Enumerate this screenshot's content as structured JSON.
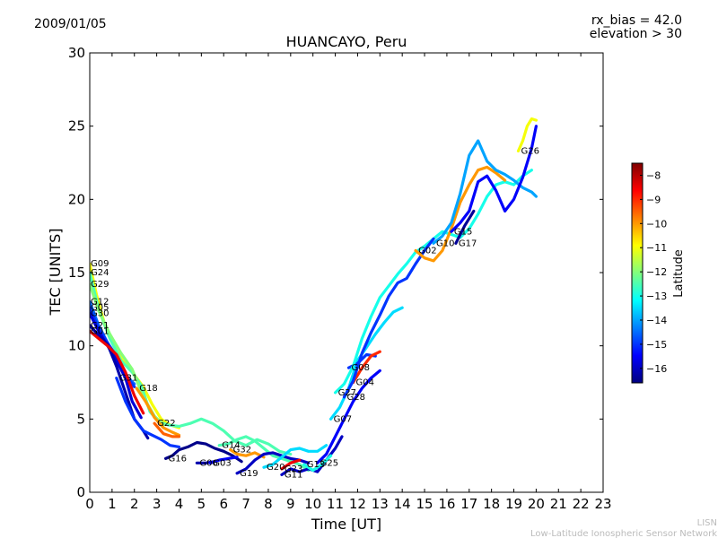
{
  "header": {
    "date": "2009/01/05",
    "rx_bias": "rx_bias = 42.0",
    "elevation": "elevation > 30"
  },
  "footer": {
    "line1": "LISN",
    "line2": "Low-Latitude Ionospheric Sensor Network"
  },
  "chart_data": {
    "type": "scatter",
    "title": "HUANCAYO, Peru",
    "xlabel": "Time [UT]",
    "ylabel": "TEC [UNITS]",
    "xlim": [
      0,
      23
    ],
    "ylim": [
      0,
      30
    ],
    "xticks": [
      0,
      1,
      2,
      3,
      4,
      5,
      6,
      7,
      8,
      9,
      10,
      11,
      12,
      13,
      14,
      15,
      16,
      17,
      18,
      19,
      20,
      21,
      22,
      23
    ],
    "yticks": [
      0,
      5,
      10,
      15,
      20,
      25,
      30
    ],
    "colorbar": {
      "label": "Latitude",
      "min": -16.6,
      "max": -7.5,
      "ticks": [
        -8,
        -9,
        -10,
        -11,
        -12,
        -13,
        -14,
        -15,
        -16
      ],
      "colormap": [
        "#00007f",
        "#0000ff",
        "#007fff",
        "#00ffff",
        "#7fff7f",
        "#ffff00",
        "#ff7f00",
        "#ff0000",
        "#7f0000"
      ]
    },
    "series": [
      {
        "name": "G09",
        "lat": -11.0,
        "points": [
          [
            0,
            15.6
          ],
          [
            0.3,
            13.5
          ],
          [
            0.7,
            11.3
          ],
          [
            1.2,
            9.6
          ],
          [
            1.6,
            8.9
          ],
          [
            2.0,
            8.0
          ],
          [
            2.4,
            7.2
          ],
          [
            2.8,
            6.0
          ],
          [
            3.2,
            5.0
          ],
          [
            3.6,
            4.6
          ],
          [
            4.0,
            4.4
          ]
        ]
      },
      {
        "name": "G24",
        "lat": -12.5,
        "points": [
          [
            0,
            15.0
          ],
          [
            0.4,
            12.5
          ],
          [
            0.9,
            10.5
          ],
          [
            1.4,
            9.0
          ],
          [
            1.9,
            8.2
          ],
          [
            2.3,
            7.3
          ],
          [
            2.7,
            5.5
          ],
          [
            3.1,
            4.8
          ],
          [
            3.5,
            4.6
          ],
          [
            4.0,
            4.5
          ],
          [
            4.5,
            4.7
          ],
          [
            5.0,
            5.0
          ],
          [
            5.5,
            4.7
          ],
          [
            6.0,
            4.2
          ],
          [
            6.5,
            3.5
          ],
          [
            7.0,
            3.2
          ],
          [
            7.5,
            3.6
          ],
          [
            8.0,
            3.3
          ],
          [
            8.5,
            2.8
          ],
          [
            9.0,
            2.6
          ]
        ]
      },
      {
        "name": "G29",
        "lat": -12.0,
        "points": [
          [
            0,
            14.2
          ],
          [
            0.4,
            12.4
          ],
          [
            0.9,
            10.8
          ],
          [
            1.4,
            9.5
          ],
          [
            1.9,
            8.4
          ],
          [
            2.4,
            6.5
          ],
          [
            2.9,
            5.2
          ],
          [
            3.3,
            4.6
          ]
        ]
      },
      {
        "name": "G12",
        "lat": -14.5,
        "points": [
          [
            0,
            13.0
          ],
          [
            0.4,
            11.4
          ],
          [
            0.8,
            10.2
          ],
          [
            1.2,
            9.0
          ],
          [
            1.6,
            8.0
          ],
          [
            2.0,
            7.4
          ]
        ]
      },
      {
        "name": "G05",
        "lat": -15.0,
        "points": [
          [
            0,
            12.6
          ],
          [
            0.4,
            11.2
          ],
          [
            0.8,
            10.2
          ],
          [
            1.2,
            9.3
          ],
          [
            1.6,
            8.0
          ],
          [
            2.0,
            7.2
          ]
        ]
      },
      {
        "name": "G30",
        "lat": -15.8,
        "points": [
          [
            0,
            12.2
          ],
          [
            0.4,
            11.0
          ],
          [
            0.8,
            10.0
          ],
          [
            1.2,
            9.0
          ],
          [
            1.6,
            7.8
          ],
          [
            1.9,
            6.2
          ],
          [
            2.3,
            5.1
          ]
        ]
      },
      {
        "name": "G21",
        "lat": -16.2,
        "points": [
          [
            0,
            11.4
          ],
          [
            0.4,
            10.7
          ],
          [
            0.8,
            10.1
          ],
          [
            1.2,
            8.6
          ],
          [
            1.6,
            6.8
          ],
          [
            2.0,
            5.0
          ],
          [
            2.4,
            4.2
          ],
          [
            2.6,
            3.7
          ]
        ]
      },
      {
        "name": "G01",
        "lat": -8.5,
        "points": [
          [
            0,
            11.0
          ],
          [
            0.4,
            10.5
          ],
          [
            0.8,
            10.0
          ],
          [
            1.2,
            9.4
          ],
          [
            1.6,
            8.2
          ],
          [
            2.0,
            6.6
          ],
          [
            2.4,
            5.4
          ]
        ]
      },
      {
        "name": "G31",
        "lat": -15.0,
        "points": [
          [
            1.2,
            7.8
          ],
          [
            1.6,
            6.2
          ],
          [
            2.0,
            5.0
          ],
          [
            2.4,
            4.2
          ],
          [
            2.8,
            3.9
          ],
          [
            3.2,
            3.6
          ],
          [
            3.6,
            3.2
          ],
          [
            4.0,
            3.1
          ]
        ]
      },
      {
        "name": "G18",
        "lat": -10.0,
        "points": [
          [
            2.1,
            7.1
          ],
          [
            2.5,
            6.2
          ],
          [
            2.9,
            5.1
          ],
          [
            3.3,
            4.4
          ],
          [
            3.7,
            4.1
          ],
          [
            4.0,
            3.9
          ]
        ]
      },
      {
        "name": "G22",
        "lat": -9.5,
        "points": [
          [
            2.9,
            4.7
          ],
          [
            3.3,
            4.0
          ],
          [
            3.7,
            3.8
          ],
          [
            4.0,
            3.8
          ]
        ]
      },
      {
        "name": "G16",
        "lat": -16.5,
        "points": [
          [
            3.4,
            2.3
          ],
          [
            3.7,
            2.5
          ],
          [
            4.0,
            2.9
          ],
          [
            4.4,
            3.1
          ],
          [
            4.8,
            3.4
          ],
          [
            5.2,
            3.3
          ],
          [
            5.6,
            3.0
          ],
          [
            6.0,
            2.8
          ],
          [
            6.4,
            2.5
          ],
          [
            6.8,
            2.1
          ]
        ]
      },
      {
        "name": "G06",
        "lat": -16.2,
        "points": [
          [
            4.8,
            2.0
          ],
          [
            5.2,
            2.0
          ],
          [
            5.6,
            2.1
          ]
        ]
      },
      {
        "name": "G03",
        "lat": -15.5,
        "points": [
          [
            5.4,
            2.0
          ],
          [
            5.8,
            2.2
          ],
          [
            6.2,
            2.3
          ],
          [
            6.6,
            2.4
          ]
        ]
      },
      {
        "name": "G14",
        "lat": -12.5,
        "points": [
          [
            5.8,
            3.2
          ],
          [
            6.2,
            3.3
          ],
          [
            6.6,
            3.6
          ],
          [
            7.0,
            3.8
          ],
          [
            7.4,
            3.5
          ],
          [
            7.8,
            3.0
          ],
          [
            8.2,
            2.5
          ],
          [
            8.6,
            2.3
          ],
          [
            9.0,
            2.1
          ],
          [
            9.4,
            1.9
          ],
          [
            9.8,
            1.5
          ]
        ]
      },
      {
        "name": "G32",
        "lat": -10.0,
        "points": [
          [
            6.3,
            2.9
          ],
          [
            6.6,
            2.6
          ],
          [
            7.0,
            2.5
          ],
          [
            7.4,
            2.7
          ],
          [
            7.8,
            2.4
          ]
        ]
      },
      {
        "name": "G19",
        "lat": -16.0,
        "points": [
          [
            6.6,
            1.3
          ],
          [
            7.0,
            1.6
          ],
          [
            7.4,
            2.2
          ],
          [
            7.8,
            2.6
          ],
          [
            8.2,
            2.7
          ],
          [
            8.6,
            2.5
          ],
          [
            9.0,
            2.3
          ],
          [
            9.4,
            2.2
          ],
          [
            9.8,
            2.0
          ]
        ]
      },
      {
        "name": "G20",
        "lat": -13.5,
        "points": [
          [
            7.8,
            1.7
          ],
          [
            8.2,
            1.9
          ],
          [
            8.6,
            2.4
          ],
          [
            9.0,
            2.9
          ],
          [
            9.4,
            3.0
          ],
          [
            9.8,
            2.8
          ],
          [
            10.2,
            2.8
          ],
          [
            10.6,
            3.2
          ]
        ]
      },
      {
        "name": "G23",
        "lat": -8.5,
        "points": [
          [
            8.6,
            1.6
          ],
          [
            9.0,
            2.0
          ],
          [
            9.4,
            2.2
          ]
        ]
      },
      {
        "name": "G11",
        "lat": -16.0,
        "points": [
          [
            8.6,
            1.2
          ],
          [
            9.0,
            1.6
          ],
          [
            9.4,
            1.4
          ],
          [
            9.8,
            1.6
          ],
          [
            10.2,
            1.4
          ],
          [
            10.6,
            2.2
          ],
          [
            11.0,
            3.0
          ],
          [
            11.3,
            3.8
          ]
        ]
      },
      {
        "name": "G13",
        "lat": -13.0,
        "points": [
          [
            9.6,
            1.9
          ],
          [
            10.0,
            1.5
          ],
          [
            10.4,
            1.9
          ],
          [
            10.8,
            2.5
          ]
        ]
      },
      {
        "name": "G25",
        "lat": -15.5,
        "points": [
          [
            10.2,
            2.0
          ],
          [
            10.6,
            2.6
          ],
          [
            11.0,
            3.8
          ],
          [
            11.4,
            5.0
          ],
          [
            11.8,
            6.2
          ],
          [
            12.2,
            7.1
          ],
          [
            12.6,
            7.8
          ],
          [
            13.0,
            8.3
          ]
        ]
      },
      {
        "name": "G07",
        "lat": -13.5,
        "points": [
          [
            10.8,
            5.0
          ],
          [
            11.2,
            5.8
          ],
          [
            11.6,
            7.1
          ],
          [
            12.0,
            9.0
          ],
          [
            12.4,
            9.9
          ],
          [
            12.8,
            10.8
          ],
          [
            13.2,
            11.6
          ],
          [
            13.6,
            12.3
          ],
          [
            14.0,
            12.6
          ]
        ]
      },
      {
        "name": "G08",
        "lat": -15.0,
        "points": [
          [
            11.6,
            8.5
          ],
          [
            12.0,
            8.8
          ],
          [
            12.4,
            9.4
          ],
          [
            12.8,
            9.3
          ]
        ]
      },
      {
        "name": "G04",
        "lat": -9.0,
        "points": [
          [
            11.8,
            7.5
          ],
          [
            12.2,
            8.5
          ],
          [
            12.6,
            9.3
          ],
          [
            13.0,
            9.6
          ]
        ]
      },
      {
        "name": "G27",
        "lat": -13.0,
        "points": [
          [
            11.0,
            6.8
          ],
          [
            11.4,
            7.4
          ],
          [
            11.8,
            8.6
          ],
          [
            12.2,
            10.5
          ],
          [
            12.6,
            12.0
          ],
          [
            13.0,
            13.3
          ],
          [
            13.4,
            14.1
          ],
          [
            13.8,
            14.9
          ],
          [
            14.2,
            15.6
          ],
          [
            14.6,
            16.4
          ],
          [
            15.0,
            16.8
          ],
          [
            15.4,
            17.3
          ],
          [
            15.8,
            17.8
          ],
          [
            16.2,
            17.6
          ],
          [
            16.6,
            17.4
          ],
          [
            17.0,
            18.0
          ],
          [
            17.4,
            19.0
          ],
          [
            17.8,
            20.2
          ],
          [
            18.2,
            21.0
          ],
          [
            18.6,
            21.2
          ],
          [
            19.0,
            21.0
          ],
          [
            19.4,
            21.6
          ],
          [
            19.8,
            22.0
          ]
        ]
      },
      {
        "name": "G28",
        "lat": -15.0,
        "points": [
          [
            11.4,
            6.5
          ],
          [
            11.8,
            7.6
          ],
          [
            12.2,
            9.5
          ],
          [
            12.6,
            10.9
          ],
          [
            13.0,
            12.1
          ],
          [
            13.4,
            13.4
          ],
          [
            13.8,
            14.3
          ],
          [
            14.2,
            14.6
          ],
          [
            14.6,
            15.6
          ],
          [
            15.0,
            16.5
          ],
          [
            15.4,
            17.3
          ]
        ]
      },
      {
        "name": "G02",
        "lat": -10.0,
        "points": [
          [
            14.6,
            16.5
          ],
          [
            15.0,
            16.0
          ],
          [
            15.4,
            15.8
          ],
          [
            15.8,
            16.5
          ],
          [
            16.2,
            18.0
          ],
          [
            16.6,
            19.8
          ],
          [
            17.0,
            21.0
          ],
          [
            17.4,
            22.0
          ],
          [
            17.8,
            22.2
          ],
          [
            18.2,
            21.8
          ],
          [
            18.6,
            21.3
          ]
        ]
      },
      {
        "name": "G10",
        "lat": -14.0,
        "points": [
          [
            15.4,
            17.0
          ],
          [
            15.8,
            17.5
          ],
          [
            16.2,
            18.4
          ],
          [
            16.6,
            20.4
          ],
          [
            17.0,
            23.0
          ],
          [
            17.4,
            24.0
          ],
          [
            17.8,
            22.6
          ],
          [
            18.2,
            22.0
          ],
          [
            18.6,
            21.7
          ],
          [
            19.0,
            21.3
          ],
          [
            19.4,
            20.8
          ],
          [
            19.8,
            20.5
          ],
          [
            20.0,
            20.2
          ]
        ]
      },
      {
        "name": "G15",
        "lat": -15.5,
        "points": [
          [
            16.2,
            17.8
          ],
          [
            16.6,
            18.4
          ],
          [
            17.0,
            19.2
          ],
          [
            17.4,
            21.2
          ],
          [
            17.8,
            21.6
          ],
          [
            18.2,
            20.6
          ],
          [
            18.6,
            19.2
          ],
          [
            19.0,
            20.0
          ],
          [
            19.4,
            21.5
          ],
          [
            19.8,
            23.5
          ],
          [
            20.0,
            25.0
          ]
        ]
      },
      {
        "name": "G26",
        "lat": -11.0,
        "points": [
          [
            19.2,
            23.3
          ],
          [
            19.4,
            24.0
          ],
          [
            19.6,
            25.0
          ],
          [
            19.8,
            25.5
          ],
          [
            20.0,
            25.4
          ]
        ]
      },
      {
        "name": "G17",
        "lat": -16.4,
        "points": [
          [
            16.4,
            17.0
          ],
          [
            16.8,
            18.2
          ],
          [
            17.2,
            19.2
          ]
        ]
      }
    ]
  }
}
